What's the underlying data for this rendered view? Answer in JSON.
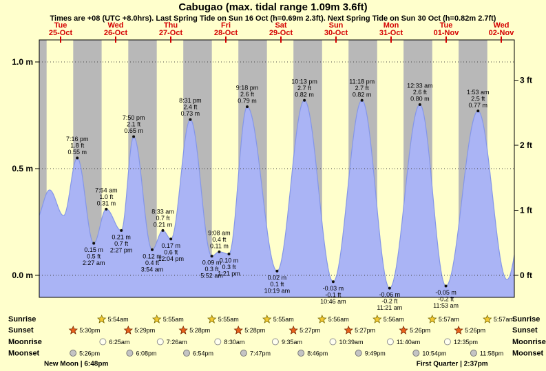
{
  "header": {
    "title": "Cabugao (max. tidal range 1.09m 3.6ft)",
    "subtitle": "Times are +08 (UTC +8.0hrs). Last Spring Tide on Sun 16 Oct (h=0.69m 2.3ft). Next Spring Tide on Sun 30 Oct (h=0.82m 2.7ft)"
  },
  "colors": {
    "background": "#ffffcc",
    "day_band": "#ffffcc",
    "night_band": "#b8b8b8",
    "tide_fill": "#aab4f5",
    "tide_stroke": "#8496e8",
    "marker": "#111111",
    "day_label_red": "#d40000",
    "grid": "#444444",
    "sunrise_star": "#f2c832",
    "sunset_star": "#e8611c",
    "moonrise_circle": "#fffff0",
    "moonset_circle": "#c4c4c4"
  },
  "chart_data": {
    "type": "area",
    "title": "Cabugao tide height curve",
    "x_unit": "hours_from_Tue_25_Oct_00:00_(+08)",
    "ylim_m": [
      -0.1,
      1.1
    ],
    "y_ticks_m": [
      {
        "label": "0.0 m",
        "value": 0.0
      },
      {
        "label": "0.5 m",
        "value": 0.5
      },
      {
        "label": "1.0 m",
        "value": 1.0
      }
    ],
    "y_ticks_ft": [
      {
        "label": "0 ft",
        "value": 0
      },
      {
        "label": "1 ft",
        "value": 1
      },
      {
        "label": "2 ft",
        "value": 2
      },
      {
        "label": "3 ft",
        "value": 3
      }
    ],
    "days": [
      {
        "dow": "Tue",
        "date": "25-Oct"
      },
      {
        "dow": "Wed",
        "date": "26-Oct"
      },
      {
        "dow": "Thu",
        "date": "27-Oct"
      },
      {
        "dow": "Fri",
        "date": "28-Oct"
      },
      {
        "dow": "Sat",
        "date": "29-Oct"
      },
      {
        "dow": "Sun",
        "date": "30-Oct"
      },
      {
        "dow": "Mon",
        "date": "31-Oct"
      },
      {
        "dow": "Tue",
        "date": "01-Nov"
      },
      {
        "dow": "Wed",
        "date": "02-Nov"
      }
    ],
    "tide_events": [
      {
        "t": -5.0,
        "h": 0.5
      },
      {
        "t": 1.2,
        "h": 0.26
      },
      {
        "t": 7.2,
        "h": 0.4
      },
      {
        "t": 13.3,
        "h": 0.28
      },
      {
        "t": 19.27,
        "h": 0.55,
        "kind": "high",
        "time": "7:16 pm",
        "ft": "1.8 ft",
        "m": "0.55 m"
      },
      {
        "t": 26.45,
        "h": 0.15,
        "kind": "low",
        "time": "2:27 am",
        "ft": "0.5 ft",
        "m": "0.15 m"
      },
      {
        "t": 31.9,
        "h": 0.31,
        "kind": "high",
        "time": "7:54 am",
        "ft": "1.0 ft",
        "m": "0.31 m"
      },
      {
        "t": 38.45,
        "h": 0.21,
        "kind": "low",
        "time": "2:27 pm",
        "ft": "0.7 ft",
        "m": "0.21 m"
      },
      {
        "t": 43.83,
        "h": 0.65,
        "kind": "high",
        "time": "7:50 pm",
        "ft": "2.1 ft",
        "m": "0.65 m"
      },
      {
        "t": 51.9,
        "h": 0.12,
        "kind": "low",
        "time": "3:54 am",
        "ft": "0.4 ft",
        "m": "0.12 m"
      },
      {
        "t": 56.55,
        "h": 0.21,
        "kind": "high",
        "time": "8:33 am",
        "ft": "0.7 ft",
        "m": "0.21 m"
      },
      {
        "t": 60.07,
        "h": 0.17,
        "kind": "low",
        "time": "12:04 pm",
        "ft": "0.6 ft",
        "m": "0.17 m"
      },
      {
        "t": 68.52,
        "h": 0.73,
        "kind": "high",
        "time": "8:31 pm",
        "ft": "2.4 ft",
        "m": "0.73 m"
      },
      {
        "t": 77.87,
        "h": 0.09,
        "kind": "low",
        "time": "5:52 am",
        "ft": "0.3 ft",
        "m": "0.09 m"
      },
      {
        "t": 81.13,
        "h": 0.11,
        "kind": "high",
        "time": "9:08 am",
        "ft": "0.4 ft",
        "m": "0.11 m"
      },
      {
        "t": 85.35,
        "h": 0.1,
        "kind": "low",
        "time": "1:21 pm",
        "ft": "0.3 ft",
        "m": "0.10 m"
      },
      {
        "t": 93.3,
        "h": 0.79,
        "kind": "high",
        "time": "9:18 pm",
        "ft": "2.6 ft",
        "m": "0.79 m"
      },
      {
        "t": 106.32,
        "h": 0.02,
        "kind": "low",
        "time": "10:19 am",
        "ft": "0.1 ft",
        "m": "0.02 m"
      },
      {
        "t": 118.22,
        "h": 0.82,
        "kind": "high",
        "time": "10:13 pm",
        "ft": "2.7 ft",
        "m": "0.82 m"
      },
      {
        "t": 130.77,
        "h": -0.03,
        "kind": "low",
        "time": "10:46 am",
        "ft": "-0.1 ft",
        "m": "-0.03 m"
      },
      {
        "t": 143.3,
        "h": 0.82,
        "kind": "high",
        "time": "11:18 pm",
        "ft": "2.7 ft",
        "m": "0.82 m"
      },
      {
        "t": 155.35,
        "h": -0.06,
        "kind": "low",
        "time": "11:21 am",
        "ft": "-0.2 ft",
        "m": "-0.06 m"
      },
      {
        "t": 168.55,
        "h": 0.8,
        "kind": "high",
        "time": "12:33 am",
        "ft": "2.6 ft",
        "m": "0.80 m"
      },
      {
        "t": 179.88,
        "h": -0.05,
        "kind": "low",
        "time": "11:53 am",
        "ft": "-0.2 ft",
        "m": "-0.05 m"
      },
      {
        "t": 193.88,
        "h": 0.77,
        "kind": "high",
        "time": "1:53 am",
        "ft": "2.5 ft",
        "m": "0.77 m"
      },
      {
        "t": 206.5,
        "h": -0.02
      },
      {
        "t": 219.0,
        "h": 0.74
      }
    ]
  },
  "astro": {
    "row_labels": [
      "Sunrise",
      "Sunset",
      "Moonrise",
      "Moonset"
    ],
    "sunrise": [
      {
        "time": "5:54am",
        "t": 29.9
      },
      {
        "time": "5:55am",
        "t": 53.917
      },
      {
        "time": "5:55am",
        "t": 77.917
      },
      {
        "time": "5:55am",
        "t": 101.917
      },
      {
        "time": "5:56am",
        "t": 125.933
      },
      {
        "time": "5:56am",
        "t": 149.933
      },
      {
        "time": "5:57am",
        "t": 173.95
      },
      {
        "time": "5:57am",
        "t": 197.95
      }
    ],
    "sunset": [
      {
        "time": "5:30pm",
        "t": 17.5
      },
      {
        "time": "5:29pm",
        "t": 41.483
      },
      {
        "time": "5:28pm",
        "t": 65.467
      },
      {
        "time": "5:28pm",
        "t": 89.467
      },
      {
        "time": "5:27pm",
        "t": 113.45
      },
      {
        "time": "5:27pm",
        "t": 137.45
      },
      {
        "time": "5:26pm",
        "t": 161.433
      },
      {
        "time": "5:26pm",
        "t": 185.433
      }
    ],
    "moonrise": [
      {
        "time": "6:25am",
        "t": 30.417
      },
      {
        "time": "7:26am",
        "t": 55.433
      },
      {
        "time": "8:30am",
        "t": 80.5
      },
      {
        "time": "9:35am",
        "t": 105.583
      },
      {
        "time": "10:39am",
        "t": 130.65
      },
      {
        "time": "11:40am",
        "t": 155.667
      },
      {
        "time": "12:35pm",
        "t": 180.583
      }
    ],
    "moonset": [
      {
        "time": "5:26pm",
        "t": 17.433
      },
      {
        "time": "6:08pm",
        "t": 42.133
      },
      {
        "time": "6:54pm",
        "t": 66.9
      },
      {
        "time": "7:47pm",
        "t": 91.783
      },
      {
        "time": "8:46pm",
        "t": 116.767
      },
      {
        "time": "9:49pm",
        "t": 141.817
      },
      {
        "time": "10:54pm",
        "t": 166.9
      },
      {
        "time": "11:58pm",
        "t": 191.967
      }
    ],
    "notes": [
      {
        "text": "New Moon | 6:48pm",
        "t": 18.8
      },
      {
        "text": "First Quarter | 2:37pm",
        "t": 182.62
      }
    ]
  }
}
